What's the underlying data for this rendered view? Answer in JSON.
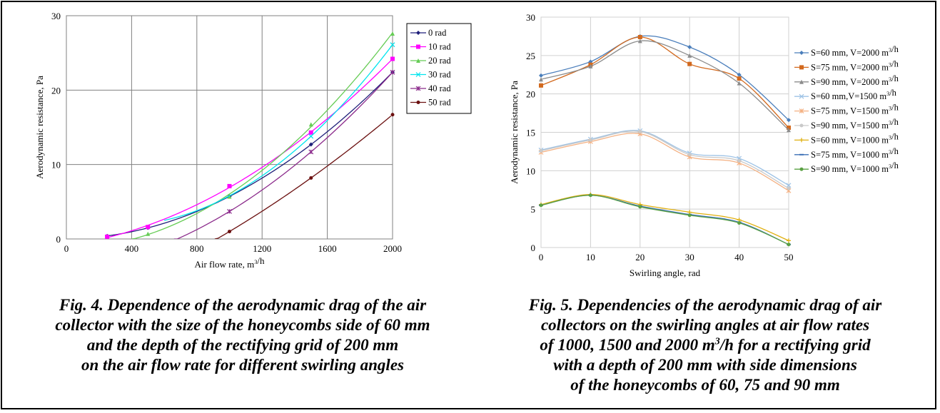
{
  "chart_data": [
    {
      "type": "line",
      "title": "",
      "xlabel": "Air flow rate, m³/h",
      "ylabel": "Aerodynamic resistance, Pa",
      "xlim": [
        0,
        2000
      ],
      "ylim": [
        0,
        30
      ],
      "xticks": [
        0,
        400,
        800,
        1200,
        1600,
        2000
      ],
      "yticks": [
        0,
        10,
        20,
        30
      ],
      "grid": true,
      "legend": "right",
      "series": [
        {
          "name": "0 rad",
          "color": "#1f1f7a",
          "marker": "diamond",
          "x": [
            250,
            500,
            1000,
            1500,
            2000
          ],
          "y": [
            0.4,
            1.5,
            5.7,
            12.7,
            22.4
          ]
        },
        {
          "name": "10 rad",
          "color": "#ff00ff",
          "marker": "square",
          "x": [
            250,
            500,
            1000,
            1500,
            2000
          ],
          "y": [
            0.3,
            1.6,
            7.1,
            14.3,
            24.2
          ]
        },
        {
          "name": "20 rad",
          "color": "#66cc55",
          "marker": "triangle",
          "x": [
            500,
            1000,
            1500,
            2000
          ],
          "y": [
            0.7,
            5.7,
            15.4,
            27.6
          ]
        },
        {
          "name": "30 rad",
          "color": "#00e5ee",
          "marker": "x",
          "x": [
            1500,
            2000
          ],
          "y": [
            13.8,
            26.1
          ]
        },
        {
          "name": "40 rad",
          "color": "#8b2a8b",
          "marker": "star",
          "x": [
            1000,
            1500,
            2000
          ],
          "y": [
            3.7,
            11.7,
            22.4
          ]
        },
        {
          "name": "50 rad",
          "color": "#6b1010",
          "marker": "circle",
          "x": [
            1000,
            1500,
            2000
          ],
          "y": [
            1.0,
            8.2,
            16.7
          ]
        }
      ]
    },
    {
      "type": "line",
      "title": "",
      "xlabel": "Swirling angle, rad",
      "ylabel": "Aerodynamic resistance, Pa",
      "xlim": [
        0,
        50
      ],
      "ylim": [
        0,
        30
      ],
      "xticks": [
        0,
        10,
        20,
        30,
        40,
        50
      ],
      "yticks": [
        0,
        5,
        10,
        15,
        20,
        25,
        30
      ],
      "grid": true,
      "legend": "right",
      "series": [
        {
          "name": "S=60 mm, V=2000 m³/h",
          "color": "#4a7ebb",
          "marker": "diamond",
          "x": [
            0,
            10,
            20,
            30,
            40,
            50
          ],
          "y": [
            22.4,
            24.2,
            27.5,
            26.1,
            22.5,
            16.6
          ]
        },
        {
          "name": "S=75 mm, V=2000 m³/h",
          "color": "#d2691e",
          "marker": "square",
          "x": [
            0,
            10,
            20,
            30,
            40,
            50
          ],
          "y": [
            21.1,
            23.8,
            27.4,
            23.9,
            22.0,
            15.6
          ]
        },
        {
          "name": "S=90 mm, V=2000 m³/h",
          "color": "#8c8c8c",
          "marker": "triangle",
          "x": [
            0,
            10,
            20,
            30,
            40,
            50
          ],
          "y": [
            21.9,
            23.6,
            26.9,
            25.0,
            21.4,
            15.3
          ]
        },
        {
          "name": "S=60 mm,V=1500 m³/h",
          "color": "#9ec3e6",
          "marker": "x",
          "x": [
            0,
            10,
            20,
            30,
            40,
            50
          ],
          "y": [
            12.7,
            14.1,
            15.2,
            12.3,
            11.6,
            8.1
          ]
        },
        {
          "name": "S=75 mm, V=1500 m³/h",
          "color": "#f4b183",
          "marker": "star",
          "x": [
            0,
            10,
            20,
            30,
            40,
            50
          ],
          "y": [
            12.4,
            13.8,
            14.8,
            11.8,
            11.0,
            7.4
          ]
        },
        {
          "name": "S=90 mm, V=1500 m³/h",
          "color": "#c9c9c9",
          "marker": "circle",
          "x": [
            0,
            10,
            20,
            30,
            40,
            50
          ],
          "y": [
            12.6,
            14.0,
            15.1,
            12.1,
            11.3,
            7.7
          ]
        },
        {
          "name": "S=60 mm, V=1000 m³/h",
          "color": "#e0b010",
          "marker": "plus",
          "x": [
            0,
            10,
            20,
            30,
            40,
            50
          ],
          "y": [
            5.6,
            6.9,
            5.6,
            4.6,
            3.6,
            0.9
          ]
        },
        {
          "name": "S=75 mm, V=1000 m³/h",
          "color": "#3b6fb6",
          "marker": "dash",
          "x": [
            0,
            10,
            20,
            30,
            40,
            50
          ],
          "y": [
            5.5,
            6.8,
            5.4,
            4.3,
            3.3,
            0.4
          ]
        },
        {
          "name": "S=90 mm, V=1000 m³/h",
          "color": "#5aa043",
          "marker": "circle",
          "x": [
            0,
            10,
            20,
            30,
            40,
            50
          ],
          "y": [
            5.5,
            6.8,
            5.3,
            4.2,
            3.2,
            0.4
          ]
        }
      ]
    }
  ],
  "captions": {
    "fig4": [
      "Fig. 4. Dependence of the aerodynamic drag of the air",
      "collector with the size of the honeycombs side of 60 mm",
      "and the depth of the rectifying grid of 200 mm",
      "on the air flow rate for different swirling angles"
    ],
    "fig5": [
      "Fig. 5. Dependencies of the aerodynamic drag of air",
      "collectors on the swirling angles at air flow rates",
      "of 1000, 1500 and 2000 m³/h for a rectifying grid",
      "with a depth of 200 mm with side dimensions",
      "of the honeycombs of 60, 75 and 90 mm"
    ]
  }
}
